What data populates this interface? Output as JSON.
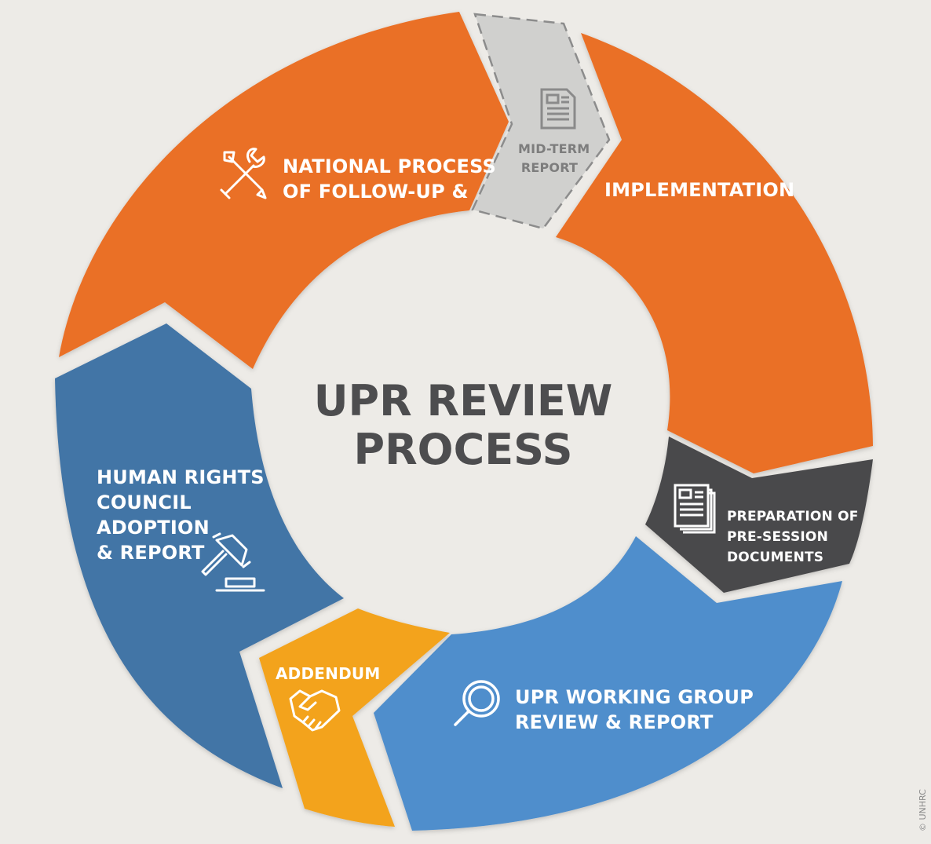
{
  "title": {
    "line1": "UPR REVIEW",
    "line2": "PROCESS"
  },
  "colors": {
    "background": "#edebe7",
    "orange": "#ea7027",
    "midterm_gray": "#d0d0ce",
    "dark_gray": "#4a4a4c",
    "light_blue": "#4f8ecc",
    "dark_blue": "#4374a6",
    "yellow": "#f3a31f",
    "title_text": "#4d4d4f"
  },
  "segments": {
    "national_process": {
      "line1": "NATIONAL PROCESS",
      "line2": "OF FOLLOW-UP &",
      "icon": "tools-icon"
    },
    "mid_term_report": {
      "line1": "MID-TERM",
      "line2": "REPORT",
      "icon": "document-icon"
    },
    "implementation": {
      "label": "IMPLEMENTATION"
    },
    "pre_session": {
      "line1": "PREPARATION OF",
      "line2": "PRE-SESSION",
      "line3": "DOCUMENTS",
      "icon": "documents-stack-icon"
    },
    "working_group": {
      "line1": "UPR WORKING GROUP",
      "line2": "REVIEW & REPORT",
      "icon": "magnifier-icon"
    },
    "addendum": {
      "label": "ADDENDUM",
      "icon": "handshake-icon"
    },
    "hrc_adoption": {
      "line1": "HUMAN RIGHTS",
      "line2": "COUNCIL",
      "line3": "ADOPTION",
      "line4": "& REPORT",
      "icon": "gavel-icon"
    }
  },
  "credit": "© UNHRC"
}
